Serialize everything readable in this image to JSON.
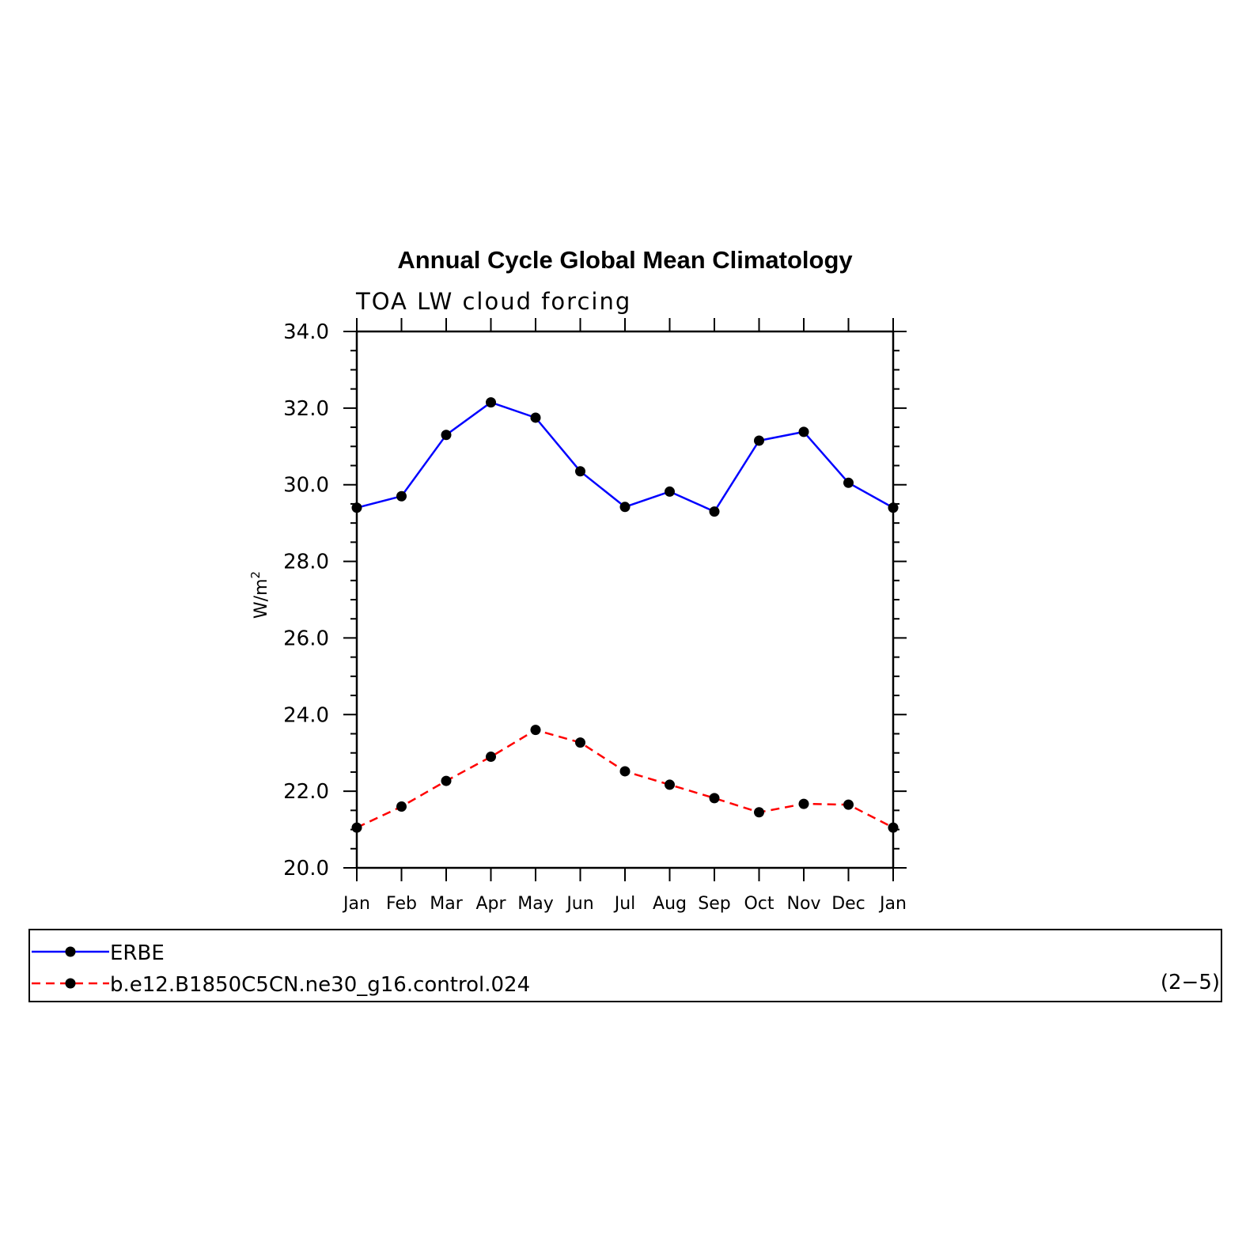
{
  "chart_data": {
    "type": "line",
    "title": "Annual Cycle Global Mean Climatology",
    "subtitle": "TOA LW cloud forcing",
    "ylabel": "W/m",
    "ylabel_superscript": "2",
    "xlabel": "",
    "ylim": [
      20.0,
      34.0
    ],
    "yticks": [
      "20.0",
      "22.0",
      "24.0",
      "26.0",
      "28.0",
      "30.0",
      "32.0",
      "34.0"
    ],
    "categories": [
      "Jan",
      "Feb",
      "Mar",
      "Apr",
      "May",
      "Jun",
      "Jul",
      "Aug",
      "Sep",
      "Oct",
      "Nov",
      "Dec",
      "Jan"
    ],
    "series": [
      {
        "name": "ERBE",
        "color": "#0000ff",
        "dash": "solid",
        "values": [
          29.4,
          29.7,
          31.3,
          32.15,
          31.75,
          30.35,
          29.42,
          29.82,
          29.3,
          31.15,
          31.38,
          30.05,
          29.4
        ]
      },
      {
        "name": "b.e12.B1850C5CN.ne30_g16.control.024",
        "color": "#ff0000",
        "dash": "dashed",
        "values": [
          21.05,
          21.6,
          22.27,
          22.9,
          23.6,
          23.27,
          22.52,
          22.17,
          21.82,
          21.45,
          21.67,
          21.65,
          21.05
        ]
      }
    ],
    "legend_position": "bottom",
    "legend_note": "(2−5)",
    "marker_color": "#000000"
  }
}
